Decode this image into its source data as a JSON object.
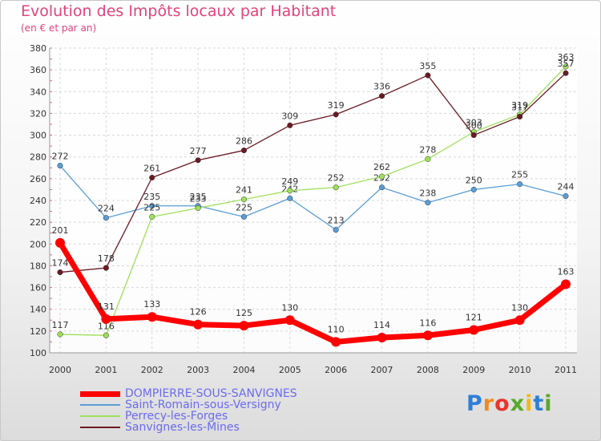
{
  "title": "Evolution des Impôts locaux par Habitant",
  "subtitle": "(en € et par an)",
  "logo": {
    "text": "Proxiti",
    "colors": [
      "#2f7fd8",
      "#f08a1c",
      "#e8352c",
      "#58a82a",
      "#f0b81c",
      "#2f7fd8",
      "#58a82a"
    ]
  },
  "chart_data": {
    "type": "line",
    "x": [
      "2000",
      "2001",
      "2002",
      "2003",
      "2004",
      "2005",
      "2006",
      "2007",
      "2008",
      "2009",
      "2010",
      "2011"
    ],
    "ylim": [
      100,
      380
    ],
    "yticks": [
      "100",
      "120",
      "140",
      "160",
      "180",
      "200",
      "220",
      "240",
      "260",
      "280",
      "300",
      "320",
      "340",
      "360",
      "380"
    ],
    "grid": true,
    "series": [
      {
        "name": "Saint-Romain-sous-Versigny",
        "color": "#5a9ed6",
        "values": [
          272,
          224,
          235,
          235,
          225,
          242,
          213,
          252,
          238,
          250,
          255,
          244
        ]
      },
      {
        "name": "Perrecy-les-Forges",
        "color": "#9ee05a",
        "values": [
          117,
          116,
          225,
          233,
          241,
          249,
          252,
          262,
          278,
          303,
          319,
          363
        ]
      },
      {
        "name": "Sanvignes-les-Mines",
        "color": "#6a1a22",
        "values": [
          174,
          178,
          261,
          277,
          286,
          309,
          319,
          336,
          355,
          300,
          317,
          357
        ]
      },
      {
        "name": "DOMPIERRE-SOUS-SANVIGNES",
        "color": "#ff0000",
        "values": [
          201,
          131,
          133,
          126,
          125,
          130,
          110,
          114,
          116,
          121,
          130,
          163
        ]
      }
    ],
    "legend": [
      {
        "label": "DOMPIERRE-SOUS-SANVIGNES",
        "color": "#ff0000",
        "main": true
      },
      {
        "label": "Saint-Romain-sous-Versigny",
        "color": "#5a9ed6",
        "main": false
      },
      {
        "label": "Perrecy-les-Forges",
        "color": "#9ee05a",
        "main": false
      },
      {
        "label": "Sanvignes-les-Mines",
        "color": "#6a1a22",
        "main": false
      }
    ]
  }
}
